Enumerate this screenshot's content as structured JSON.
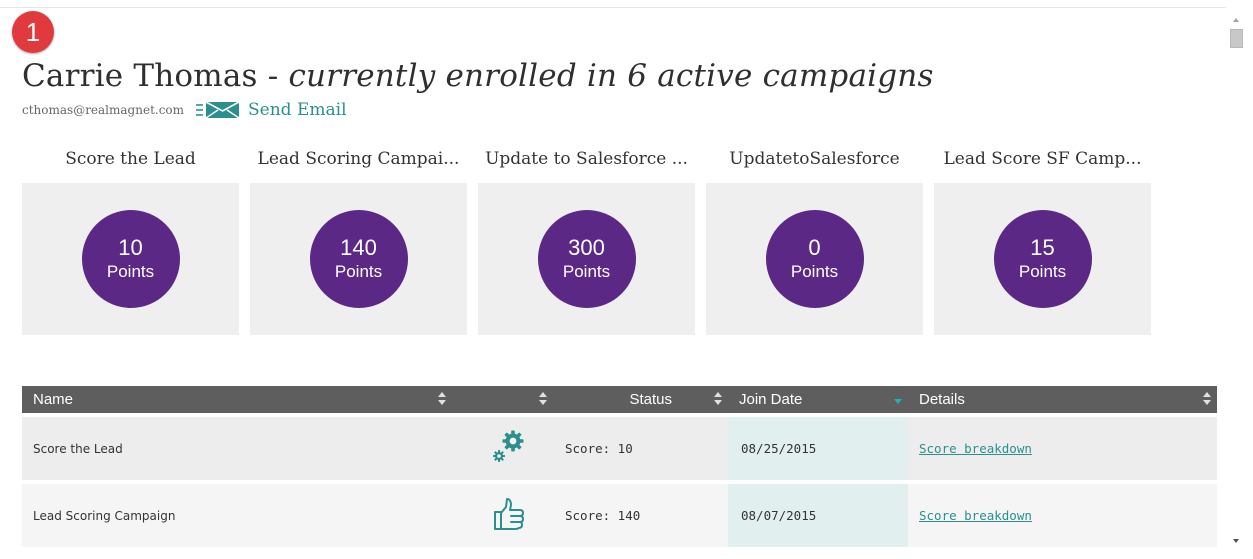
{
  "step_badge": "1",
  "contact": {
    "name": "Carrie Thomas",
    "separator": " - ",
    "status": "currently enrolled in 6 active campaigns",
    "email": "cthomas@realmagnet.com",
    "send_email_label": "Send Email"
  },
  "cards": [
    {
      "title": "Score the Lead",
      "points": "10",
      "unit": "Points"
    },
    {
      "title": "Lead Scoring Campai...",
      "points": "140",
      "unit": "Points"
    },
    {
      "title": "Update to Salesforce ...",
      "points": "300",
      "unit": "Points"
    },
    {
      "title": "UpdatetoSalesforce",
      "points": "0",
      "unit": "Points"
    },
    {
      "title": "Lead Score SF Camp...",
      "points": "15",
      "unit": "Points"
    }
  ],
  "table": {
    "headers": {
      "name": "Name",
      "icon": "",
      "status": "Status",
      "join_date": "Join Date",
      "details": "Details"
    },
    "rows": [
      {
        "name": "Score the Lead",
        "icon": "gears-icon",
        "status": "Score: 10",
        "join_date": "08/25/2015",
        "details": "Score breakdown"
      },
      {
        "name": "Lead Scoring Campaign",
        "icon": "thumbs-up-icon",
        "status": "Score: 140",
        "join_date": "08/07/2015",
        "details": "Score breakdown"
      }
    ]
  },
  "colors": {
    "badge": "#e03a3e",
    "points_circle": "#5b2886",
    "card_bg": "#efefef",
    "header_bg": "#5e5e5e",
    "accent": "#2b8f8f",
    "sorted_column_bg": "#e1f0ef"
  }
}
